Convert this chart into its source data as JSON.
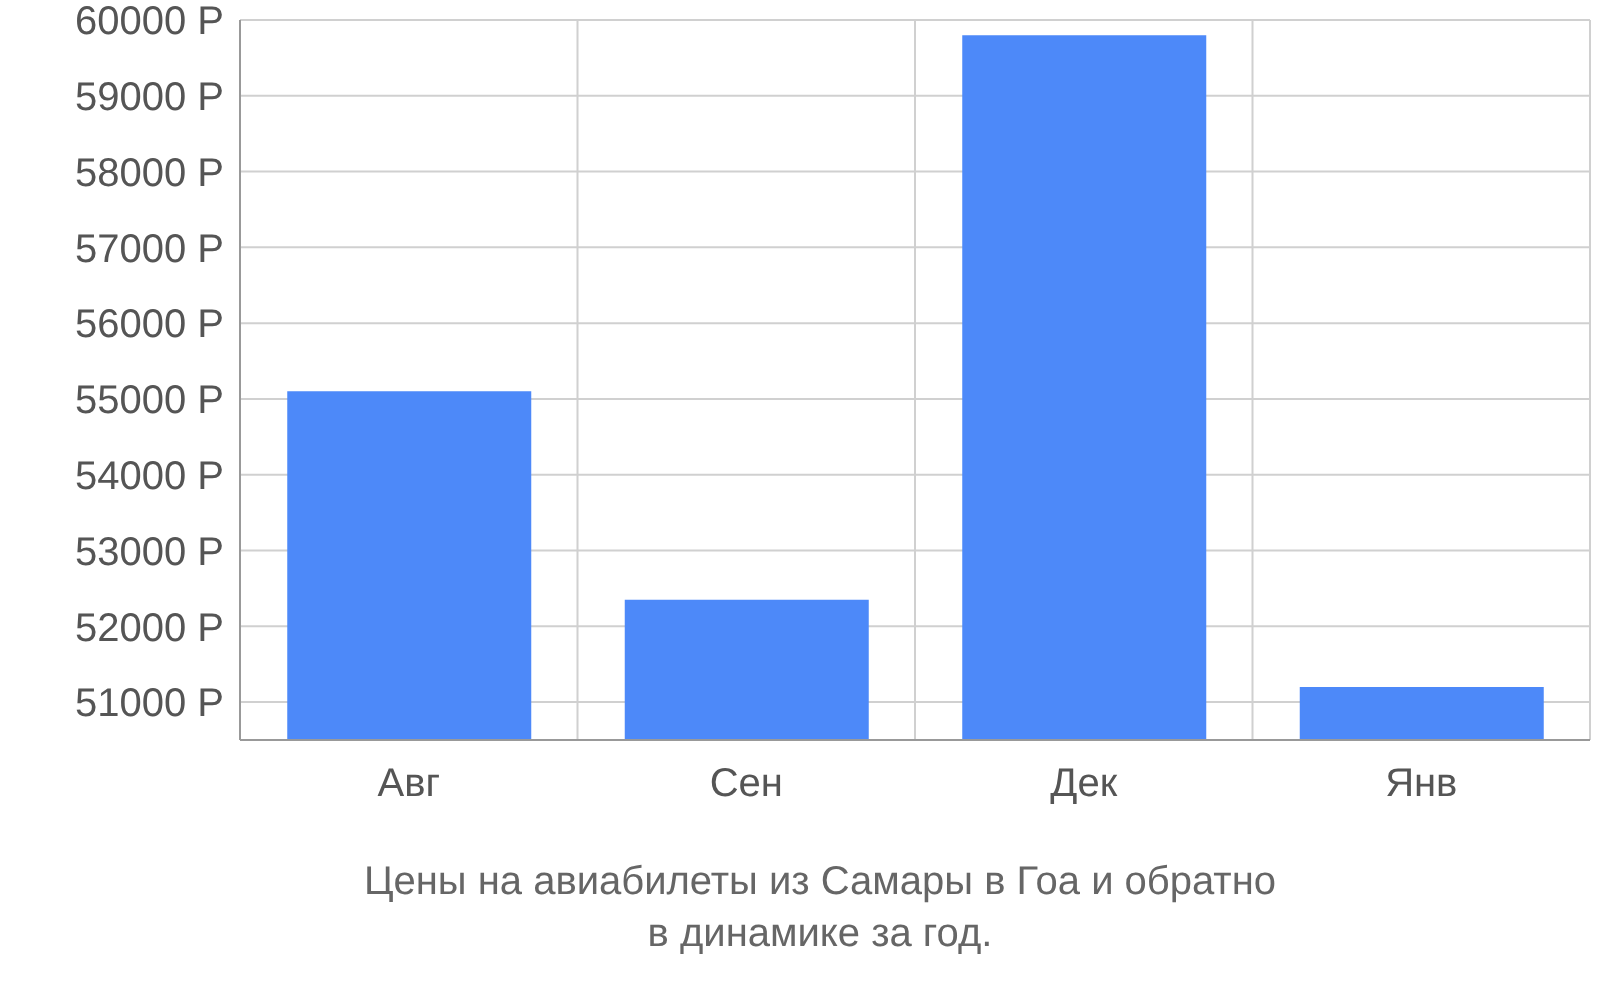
{
  "chart_data": {
    "type": "bar",
    "categories": [
      "Авг",
      "Сен",
      "Дек",
      "Янв"
    ],
    "values": [
      55100,
      52350,
      59800,
      51200
    ],
    "color": "#4d89f9",
    "ylim": [
      50500,
      60000
    ],
    "yticks": [
      {
        "value": 51000,
        "label": "51000 Р"
      },
      {
        "value": 52000,
        "label": "52000 Р"
      },
      {
        "value": 53000,
        "label": "53000 Р"
      },
      {
        "value": 54000,
        "label": "54000 Р"
      },
      {
        "value": 55000,
        "label": "55000 Р"
      },
      {
        "value": 56000,
        "label": "56000 Р"
      },
      {
        "value": 57000,
        "label": "57000 Р"
      },
      {
        "value": 58000,
        "label": "58000 Р"
      },
      {
        "value": 59000,
        "label": "59000 Р"
      },
      {
        "value": 60000,
        "label": "60000 Р"
      }
    ],
    "grid": true,
    "annotations": [
      "Цены на авиабилеты из Самары в Гоа и обратно",
      "в динамике за год."
    ]
  }
}
